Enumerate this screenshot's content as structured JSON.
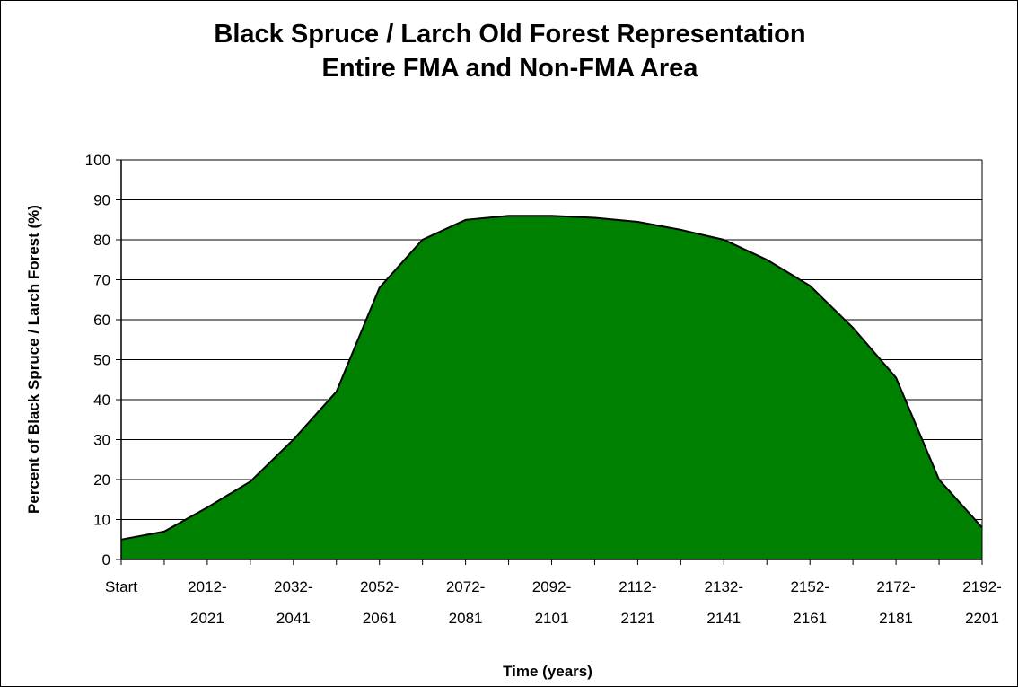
{
  "chart_data": {
    "type": "area",
    "title": "Black Spruce / Larch Old Forest Representation",
    "subtitle": "Entire FMA and Non-FMA Area",
    "xlabel": "Time (years)",
    "ylabel": "Percent of Black Spruce / Larch Forest (%)",
    "ylim": [
      0,
      100
    ],
    "yticks": [
      0,
      10,
      20,
      30,
      40,
      50,
      60,
      70,
      80,
      90,
      100
    ],
    "grid": true,
    "area_color": "#008000",
    "x_labels": [
      {
        "line1": "Start",
        "line2": ""
      },
      {
        "line1": "2012-",
        "line2": "2021"
      },
      {
        "line1": "2032-",
        "line2": "2041"
      },
      {
        "line1": "2052-",
        "line2": "2061"
      },
      {
        "line1": "2072-",
        "line2": "2081"
      },
      {
        "line1": "2092-",
        "line2": "2101"
      },
      {
        "line1": "2112-",
        "line2": "2121"
      },
      {
        "line1": "2132-",
        "line2": "2141"
      },
      {
        "line1": "2152-",
        "line2": "2161"
      },
      {
        "line1": "2172-",
        "line2": "2181"
      },
      {
        "line1": "2192-",
        "line2": "2201"
      }
    ],
    "values": [
      5,
      7,
      13,
      19.5,
      30,
      42,
      68,
      80,
      85,
      86,
      86,
      85.5,
      84.5,
      82.5,
      80,
      75,
      68.5,
      58,
      45.5,
      20,
      8
    ]
  }
}
